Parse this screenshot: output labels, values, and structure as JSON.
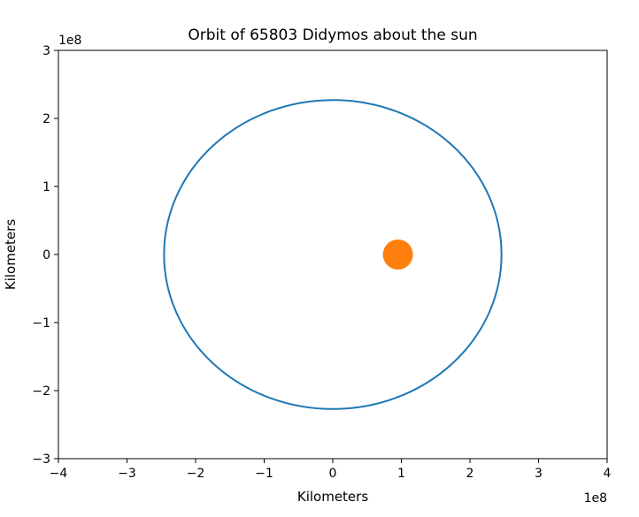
{
  "chart_data": {
    "type": "line",
    "title": "Orbit of 65803 Didymos about the sun",
    "xlabel": "Kilometers",
    "ylabel": "Kilometers",
    "xlim": [
      -400000000.0,
      400000000.0
    ],
    "ylim": [
      -300000000.0,
      300000000.0
    ],
    "x_ticks": [
      -400000000.0,
      -300000000.0,
      -200000000.0,
      -100000000.0,
      0,
      100000000.0,
      200000000.0,
      300000000.0,
      400000000.0
    ],
    "x_tick_labels": [
      "−4",
      "−3",
      "−2",
      "−1",
      "0",
      "1",
      "2",
      "3",
      "4"
    ],
    "y_ticks": [
      -300000000.0,
      -200000000.0,
      -100000000.0,
      0,
      100000000.0,
      200000000.0,
      300000000.0
    ],
    "y_tick_labels": [
      "−3",
      "−2",
      "−1",
      "0",
      "1",
      "2",
      "3"
    ],
    "x_offset_label": "1e8",
    "y_offset_label": "1e8",
    "grid": false,
    "series": [
      {
        "kind": "orbit-ellipse",
        "center": [
          0,
          0
        ],
        "semi_axis_x": 246000000.0,
        "semi_axis_y": 227000000.0,
        "color": "#1f77b4"
      },
      {
        "kind": "point",
        "x": 95000000.0,
        "y": 0,
        "color": "#ff7f0e"
      }
    ]
  }
}
